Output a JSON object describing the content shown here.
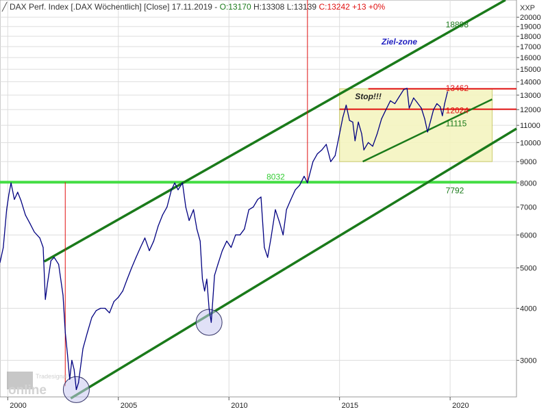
{
  "header": {
    "icon": "line-chart-icon",
    "title": "DAX Perf. Index [.DAX  Wöchentlich] [Close] 17.11.2019 - ",
    "open": "O:13170",
    "high": "H:13308",
    "low": "L:13139",
    "close_change": "C:13242 +13 +0%",
    "axis_id": "XXP"
  },
  "watermark": {
    "line1": "Tradesignal",
    "line2": "online"
  },
  "colors": {
    "price_line": "#000080",
    "channel": "#1a7a1a",
    "horizontal_support": "#44dd44",
    "red_line": "#e01010",
    "zone_fill": "#f5f5c0",
    "zone_border": "#c8c860",
    "circle_fill": "#c8c8f0"
  },
  "chart_data": {
    "type": "line",
    "title": "DAX Perf. Index [.DAX Wöchentlich] [Close]",
    "yscale": "log",
    "ylim": [
      2450,
      22000
    ],
    "xlim": [
      1999.65,
      2023.0
    ],
    "yticks": [
      3000,
      4000,
      5000,
      6000,
      7000,
      8000,
      9000,
      10000,
      11000,
      12000,
      13000,
      14000,
      15000,
      16000,
      17000,
      18000,
      19000,
      20000
    ],
    "xticks": [
      2000,
      2005,
      2010,
      2015,
      2020
    ],
    "grid": true,
    "series": [
      {
        "values": [
          [
            1999.65,
            5150
          ],
          [
            1999.8,
            5600
          ],
          [
            1999.95,
            6900
          ],
          [
            2000.05,
            7500
          ],
          [
            2000.15,
            8000
          ],
          [
            2000.3,
            7300
          ],
          [
            2000.45,
            7600
          ],
          [
            2000.6,
            7250
          ],
          [
            2000.8,
            6700
          ],
          [
            2001.0,
            6400
          ],
          [
            2001.2,
            6100
          ],
          [
            2001.45,
            5900
          ],
          [
            2001.6,
            5600
          ],
          [
            2001.7,
            4200
          ],
          [
            2001.8,
            4600
          ],
          [
            2001.95,
            5200
          ],
          [
            2002.1,
            5300
          ],
          [
            2002.3,
            5100
          ],
          [
            2002.5,
            4300
          ],
          [
            2002.6,
            3500
          ],
          [
            2002.7,
            3100
          ],
          [
            2002.8,
            2700
          ],
          [
            2002.9,
            3000
          ],
          [
            2003.0,
            2850
          ],
          [
            2003.1,
            2550
          ],
          [
            2003.2,
            2650
          ],
          [
            2003.4,
            3200
          ],
          [
            2003.6,
            3500
          ],
          [
            2003.8,
            3800
          ],
          [
            2004.0,
            3950
          ],
          [
            2004.2,
            4000
          ],
          [
            2004.4,
            4000
          ],
          [
            2004.6,
            3900
          ],
          [
            2004.8,
            4150
          ],
          [
            2005.0,
            4250
          ],
          [
            2005.2,
            4400
          ],
          [
            2005.4,
            4700
          ],
          [
            2005.6,
            5000
          ],
          [
            2005.8,
            5300
          ],
          [
            2006.0,
            5600
          ],
          [
            2006.2,
            5900
          ],
          [
            2006.4,
            5500
          ],
          [
            2006.6,
            5800
          ],
          [
            2006.8,
            6300
          ],
          [
            2007.0,
            6700
          ],
          [
            2007.2,
            7000
          ],
          [
            2007.4,
            7700
          ],
          [
            2007.55,
            8000
          ],
          [
            2007.7,
            7700
          ],
          [
            2007.9,
            8000
          ],
          [
            2008.05,
            7000
          ],
          [
            2008.2,
            6500
          ],
          [
            2008.4,
            6900
          ],
          [
            2008.55,
            6200
          ],
          [
            2008.7,
            5800
          ],
          [
            2008.8,
            4700
          ],
          [
            2008.9,
            4400
          ],
          [
            2009.0,
            4700
          ],
          [
            2009.1,
            4000
          ],
          [
            2009.2,
            3700
          ],
          [
            2009.35,
            4800
          ],
          [
            2009.5,
            5100
          ],
          [
            2009.7,
            5500
          ],
          [
            2009.9,
            5800
          ],
          [
            2010.1,
            5600
          ],
          [
            2010.3,
            6000
          ],
          [
            2010.5,
            6000
          ],
          [
            2010.7,
            6200
          ],
          [
            2010.9,
            6900
          ],
          [
            2011.1,
            7000
          ],
          [
            2011.3,
            7300
          ],
          [
            2011.45,
            7400
          ],
          [
            2011.6,
            5600
          ],
          [
            2011.75,
            5300
          ],
          [
            2011.9,
            5900
          ],
          [
            2012.1,
            6900
          ],
          [
            2012.3,
            6400
          ],
          [
            2012.45,
            6000
          ],
          [
            2012.6,
            6900
          ],
          [
            2012.8,
            7300
          ],
          [
            2013.0,
            7700
          ],
          [
            2013.2,
            7900
          ],
          [
            2013.4,
            8300
          ],
          [
            2013.55,
            8000
          ],
          [
            2013.8,
            9000
          ],
          [
            2014.0,
            9400
          ],
          [
            2014.2,
            9600
          ],
          [
            2014.4,
            9900
          ],
          [
            2014.6,
            9000
          ],
          [
            2014.8,
            9300
          ],
          [
            2015.0,
            10500
          ],
          [
            2015.15,
            11500
          ],
          [
            2015.3,
            12300
          ],
          [
            2015.45,
            11300
          ],
          [
            2015.6,
            11200
          ],
          [
            2015.7,
            10100
          ],
          [
            2015.85,
            11200
          ],
          [
            2016.0,
            10500
          ],
          [
            2016.1,
            9600
          ],
          [
            2016.3,
            10000
          ],
          [
            2016.5,
            9800
          ],
          [
            2016.7,
            10500
          ],
          [
            2016.9,
            11400
          ],
          [
            2017.1,
            12000
          ],
          [
            2017.3,
            12600
          ],
          [
            2017.5,
            12400
          ],
          [
            2017.7,
            12900
          ],
          [
            2017.9,
            13400
          ],
          [
            2018.05,
            13500
          ],
          [
            2018.15,
            12100
          ],
          [
            2018.35,
            12800
          ],
          [
            2018.5,
            12500
          ],
          [
            2018.7,
            12100
          ],
          [
            2018.85,
            11400
          ],
          [
            2018.98,
            10600
          ],
          [
            2019.1,
            11200
          ],
          [
            2019.25,
            12000
          ],
          [
            2019.4,
            12400
          ],
          [
            2019.55,
            12200
          ],
          [
            2019.65,
            11600
          ],
          [
            2019.75,
            12400
          ],
          [
            2019.88,
            13242
          ]
        ]
      }
    ],
    "channel_lines": [
      {
        "role": "upper-channel",
        "from": [
          2001.65,
          5180
        ],
        "to": [
          2022.5,
          22000
        ]
      },
      {
        "role": "lower-channel",
        "from": [
          2002.85,
          2430
        ],
        "to": [
          2023.0,
          10800
        ]
      },
      {
        "role": "inner-trend",
        "from": [
          2016.05,
          9000
        ],
        "to": [
          2021.9,
          12700
        ]
      }
    ],
    "horizontal_lines": [
      {
        "role": "support-8032",
        "y": 8032,
        "from": 1999.65,
        "to": 2023.0
      },
      {
        "role": "red-13462",
        "y": 13462,
        "from": 2016.3,
        "to": 2023.0
      },
      {
        "role": "red-12024",
        "y": 12024,
        "from": 2015.0,
        "to": 2023.0
      }
    ],
    "vertical_lines": [
      {
        "role": "red-vertical-2002",
        "x": 2002.6,
        "from": 2600,
        "to": 8032
      },
      {
        "role": "red-vertical-2013",
        "x": 2013.55,
        "from": 8032,
        "to": 22000
      }
    ],
    "zone": {
      "role": "ziel-zone-box",
      "x": [
        2015.0,
        2021.9
      ],
      "y": [
        9000,
        13462
      ]
    },
    "circles": [
      {
        "role": "low-2003",
        "x": 2003.1,
        "y": 2550
      },
      {
        "role": "low-2009",
        "x": 2009.1,
        "y": 3700
      }
    ],
    "annotations": [
      {
        "text": "Ziel-zone",
        "x": 2016.9,
        "y": 17200,
        "color": "#2020c0",
        "style": "bold-italic"
      },
      {
        "text": "Stop!!!",
        "x": 2015.7,
        "y": 12700,
        "color": "#222222",
        "style": "bold-italic"
      },
      {
        "text": "18898",
        "x": 2019.8,
        "y": 18898,
        "color": "#1a7a1a",
        "style": "normal"
      },
      {
        "text": "13462",
        "x": 2019.8,
        "y": 13300,
        "color": "#e01010",
        "style": "normal"
      },
      {
        "text": "12024",
        "x": 2019.8,
        "y": 11750,
        "color": "#e01010",
        "style": "normal"
      },
      {
        "text": "11115",
        "x": 2019.8,
        "y": 10950,
        "color": "#1a7a1a",
        "style": "normal"
      },
      {
        "text": "8032",
        "x": 2011.7,
        "y": 8150,
        "color": "#33cc33",
        "style": "normal"
      },
      {
        "text": "7792",
        "x": 2019.8,
        "y": 7550,
        "color": "#1a7a1a",
        "style": "normal"
      }
    ]
  }
}
